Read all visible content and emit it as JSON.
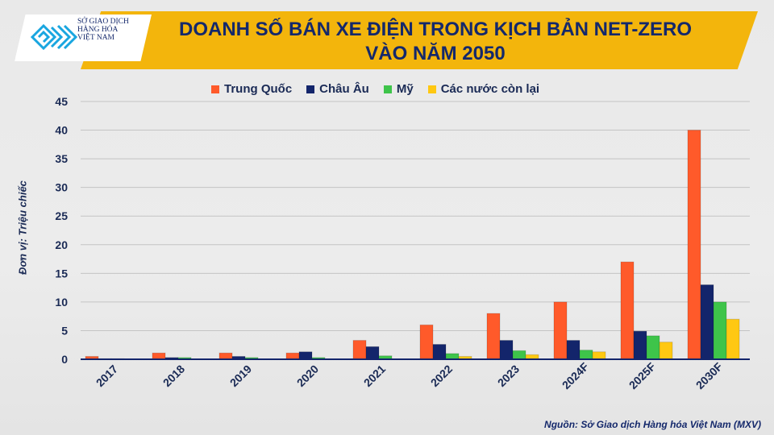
{
  "header": {
    "title_line1": "DOANH SỐ BÁN XE ĐIỆN TRONG KỊCH BẢN NET-ZERO",
    "title_line2": "VÀO NĂM 2050"
  },
  "logo": {
    "line1": "SỞ GIAO DỊCH",
    "line2": "HÀNG HÓA",
    "line3": "VIỆT NAM"
  },
  "source": "Nguồn: Sở Giao dịch Hàng hóa Việt Nam (MXV)",
  "chart_data": {
    "type": "bar",
    "title": "DOANH SỐ BÁN XE ĐIỆN TRONG KỊCH BẢN NET-ZERO VÀO NĂM 2050",
    "ylabel": "Đơn vị: Triệu chiếc",
    "xlabel": "",
    "ylim": [
      0,
      45
    ],
    "yticks": [
      0,
      5,
      10,
      15,
      20,
      25,
      30,
      35,
      40,
      45
    ],
    "grid": true,
    "legend": "top",
    "categories": [
      "2017",
      "2018",
      "2019",
      "2020",
      "2021",
      "2022",
      "2023",
      "2024F",
      "2025F",
      "2030F"
    ],
    "series": [
      {
        "name": "Trung Quốc",
        "color": "#ff5a2a",
        "values": [
          0.5,
          1.1,
          1.1,
          1.1,
          3.3,
          6,
          8,
          10,
          17,
          40
        ]
      },
      {
        "name": "Châu Âu",
        "color": "#13256b",
        "values": [
          0.1,
          0.3,
          0.5,
          1.3,
          2.2,
          2.6,
          3.3,
          3.3,
          4.9,
          13
        ]
      },
      {
        "name": "Mỹ",
        "color": "#3ec44a",
        "values": [
          0.1,
          0.3,
          0.3,
          0.3,
          0.6,
          1.0,
          1.5,
          1.6,
          4.1,
          10
        ]
      },
      {
        "name": "Các nước còn lại",
        "color": "#ffc812",
        "values": [
          0,
          0,
          0,
          0,
          0,
          0.5,
          0.8,
          1.3,
          3,
          7
        ]
      }
    ]
  }
}
